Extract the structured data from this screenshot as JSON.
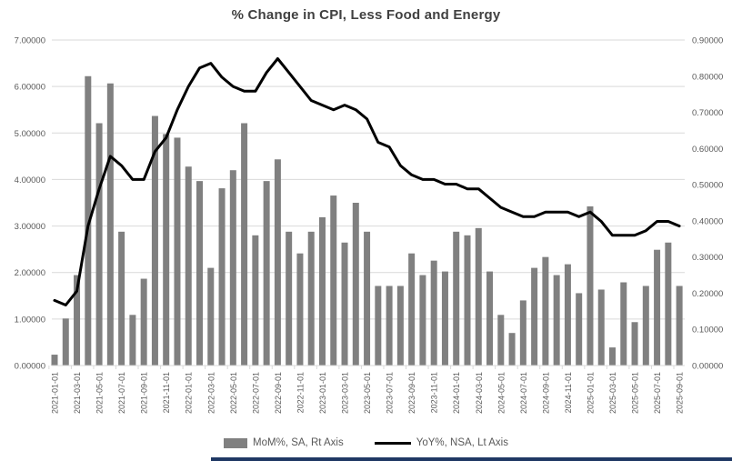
{
  "title": "% Change in CPI, Less Food and Energy",
  "legend": {
    "series1_label": "MoM%, SA, Rt Axis",
    "series2_label": "YoY%, NSA, Lt Axis"
  },
  "colors": {
    "bar": "#808080",
    "line": "#000000",
    "gridline": "#d9d9d9",
    "axis_text": "#595959",
    "title_text": "#404040",
    "bottom_strip": "#1f3864"
  },
  "chart_data": {
    "type": "bar+line",
    "title": "% Change in CPI, Less Food and Energy",
    "categories": [
      "2021-01-01",
      "2021-02-01",
      "2021-03-01",
      "2021-04-01",
      "2021-05-01",
      "2021-06-01",
      "2021-07-01",
      "2021-08-01",
      "2021-09-01",
      "2021-10-01",
      "2021-11-01",
      "2021-12-01",
      "2022-01-01",
      "2022-02-01",
      "2022-03-01",
      "2022-04-01",
      "2022-05-01",
      "2022-06-01",
      "2022-07-01",
      "2022-08-01",
      "2022-09-01",
      "2022-10-01",
      "2022-11-01",
      "2022-12-01",
      "2023-01-01",
      "2023-02-01",
      "2023-03-01",
      "2023-04-01",
      "2023-05-01",
      "2023-06-01",
      "2023-07-01",
      "2023-08-01",
      "2023-09-01",
      "2023-10-01",
      "2023-11-01",
      "2023-12-01",
      "2024-01-01",
      "2024-02-01",
      "2024-03-01",
      "2024-04-01",
      "2024-05-01",
      "2024-06-01",
      "2024-07-01",
      "2024-08-01",
      "2024-09-01",
      "2024-10-01",
      "2024-11-01",
      "2024-12-01",
      "2025-01-01",
      "2025-02-01",
      "2025-03-01",
      "2025-04-01",
      "2025-05-01",
      "2025-06-01",
      "2025-07-01",
      "2025-08-01",
      "2025-09-01"
    ],
    "x_label_every": 2,
    "series": [
      {
        "name": "MoM%, SA, Rt Axis",
        "type": "bar",
        "axis": "right",
        "values": [
          0.03,
          0.13,
          0.25,
          0.8,
          0.67,
          0.78,
          0.37,
          0.14,
          0.24,
          0.69,
          0.64,
          0.63,
          0.55,
          0.51,
          0.27,
          0.49,
          0.54,
          0.67,
          0.36,
          0.51,
          0.57,
          0.37,
          0.31,
          0.37,
          0.41,
          0.47,
          0.34,
          0.45,
          0.37,
          0.22,
          0.22,
          0.22,
          0.31,
          0.25,
          0.29,
          0.26,
          0.37,
          0.36,
          0.38,
          0.26,
          0.14,
          0.09,
          0.18,
          0.27,
          0.3,
          0.25,
          0.28,
          0.2,
          0.44,
          0.21,
          0.05,
          0.23,
          0.12,
          0.22,
          0.32,
          0.34,
          0.22
        ]
      },
      {
        "name": "YoY%, NSA, Lt Axis",
        "type": "line",
        "axis": "left",
        "values": [
          1.4,
          1.3,
          1.6,
          3.0,
          3.8,
          4.5,
          4.3,
          4.0,
          4.0,
          4.6,
          4.9,
          5.5,
          6.0,
          6.4,
          6.5,
          6.2,
          6.0,
          5.9,
          5.9,
          6.3,
          6.6,
          6.3,
          6.0,
          5.7,
          5.6,
          5.5,
          5.6,
          5.5,
          5.3,
          4.8,
          4.7,
          4.3,
          4.1,
          4.0,
          4.0,
          3.9,
          3.9,
          3.8,
          3.8,
          3.6,
          3.4,
          3.3,
          3.2,
          3.2,
          3.3,
          3.3,
          3.3,
          3.2,
          3.3,
          3.1,
          2.8,
          2.8,
          2.8,
          2.9,
          3.1,
          3.1,
          3.0
        ]
      }
    ],
    "left_axis": {
      "min": 0,
      "max": 7,
      "step": 1,
      "tick_labels": [
        "0.00000",
        "1.00000",
        "2.00000",
        "3.00000",
        "4.00000",
        "5.00000",
        "6.00000",
        "7.00000"
      ]
    },
    "right_axis": {
      "min": 0,
      "max": 0.9,
      "step": 0.1,
      "tick_labels": [
        "0.00000",
        "0.10000",
        "0.20000",
        "0.30000",
        "0.40000",
        "0.50000",
        "0.60000",
        "0.70000",
        "0.80000",
        "0.90000"
      ]
    },
    "grid": true,
    "legend_position": "bottom"
  }
}
